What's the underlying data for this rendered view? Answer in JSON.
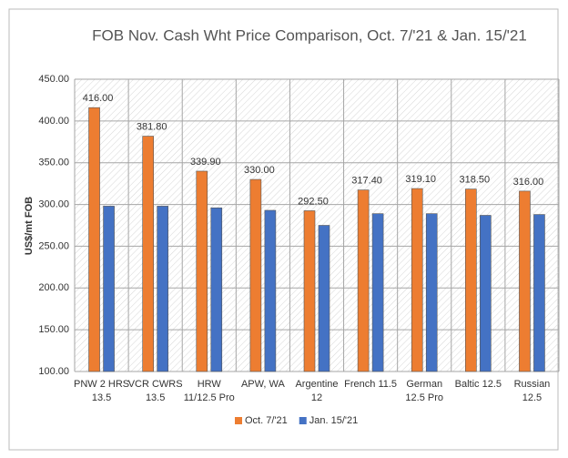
{
  "chart_data": {
    "type": "bar",
    "title": "FOB Nov. Cash Wht Price Comparison, Oct. 7/'21 & Jan. 15/'21",
    "y_label": "US$/mt FOB",
    "categories": [
      "PNW 2 HRS\n13.5",
      "VCR CWRS\n13.5",
      "HRW\n11/12.5 Pro",
      "APW, WA",
      "Argentine\n12",
      "French 11.5",
      "German\n12.5 Pro",
      "Baltic 12.5",
      "Russian\n12.5"
    ],
    "series": [
      {
        "name": "Oct. 7/'21",
        "color": "#ed7d31",
        "values": [
          416,
          381.8,
          339.9,
          330,
          292.5,
          317.4,
          319.1,
          318.5,
          316
        ],
        "value_labels": [
          "416.00",
          "381.80",
          "339.90",
          "330.00",
          "292.50",
          "317.40",
          "319.10",
          "318.50",
          "316.00"
        ]
      },
      {
        "name": "Jan. 15/'21",
        "color": "#4472c4",
        "values": [
          298,
          298,
          296,
          293,
          275,
          289,
          289,
          287,
          288
        ]
      }
    ],
    "ylim": [
      100,
      450
    ],
    "yticks": [
      {
        "value": 100,
        "label": "100.00"
      },
      {
        "value": 150,
        "label": "150.00"
      },
      {
        "value": 200,
        "label": "200.00"
      },
      {
        "value": 250,
        "label": "250.00"
      },
      {
        "value": 300,
        "label": "300.00"
      },
      {
        "value": 350,
        "label": "350.00"
      },
      {
        "value": 400,
        "label": "400.00"
      },
      {
        "value": 450,
        "label": "450.00"
      }
    ],
    "grid": true,
    "legend": "bottom"
  }
}
